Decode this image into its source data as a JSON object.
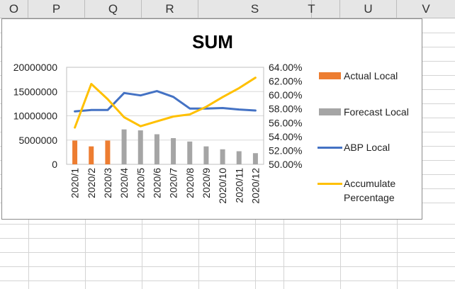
{
  "sheet": {
    "columns": [
      "O",
      "P",
      "Q",
      "R",
      "S",
      "T",
      "U",
      "V"
    ]
  },
  "chart_data": {
    "type": "bar",
    "title": "SUM",
    "categories": [
      "2020/1",
      "2020/2",
      "2020/3",
      "2020/4",
      "2020/5",
      "2020/6",
      "2020/7",
      "2020/8",
      "2020/9",
      "2020/10",
      "2020/11",
      "2020/12"
    ],
    "y_left": {
      "ylim": [
        0,
        20000000
      ],
      "ticks": [
        0,
        5000000,
        10000000,
        15000000,
        20000000
      ],
      "tick_labels": [
        "0",
        "5000000",
        "10000000",
        "15000000",
        "20000000"
      ]
    },
    "y_right": {
      "ylim": [
        0.5,
        0.64
      ],
      "ticks": [
        0.5,
        0.52,
        0.54,
        0.56,
        0.58,
        0.6,
        0.62,
        0.64
      ],
      "tick_labels": [
        "50.00%",
        "52.00%",
        "54.00%",
        "56.00%",
        "58.00%",
        "60.00%",
        "62.00%",
        "64.00%"
      ]
    },
    "grid": true,
    "legend_position": "right",
    "series": [
      {
        "name": "Actual Local",
        "kind": "bar",
        "axis": "left",
        "color": "#ed7d31",
        "values": [
          4900000,
          3700000,
          4900000,
          null,
          null,
          null,
          null,
          null,
          null,
          null,
          null,
          null
        ]
      },
      {
        "name": "Forecast Local",
        "kind": "bar",
        "axis": "left",
        "color": "#a5a5a5",
        "values": [
          null,
          null,
          null,
          7200000,
          7000000,
          6200000,
          5400000,
          4700000,
          3700000,
          3100000,
          2700000,
          2300000
        ]
      },
      {
        "name": "ABP Local",
        "kind": "line",
        "axis": "left",
        "color": "#4472c4",
        "values": [
          10900000,
          11200000,
          11200000,
          14700000,
          14200000,
          15100000,
          13900000,
          11500000,
          11500000,
          11600000,
          11300000,
          11100000
        ]
      },
      {
        "name": "Accumulate Percentage",
        "kind": "line",
        "axis": "right",
        "color": "#ffc000",
        "values": [
          0.553,
          0.616,
          0.594,
          0.568,
          0.555,
          0.562,
          0.569,
          0.572,
          0.583,
          0.597,
          0.61,
          0.625
        ]
      }
    ]
  }
}
